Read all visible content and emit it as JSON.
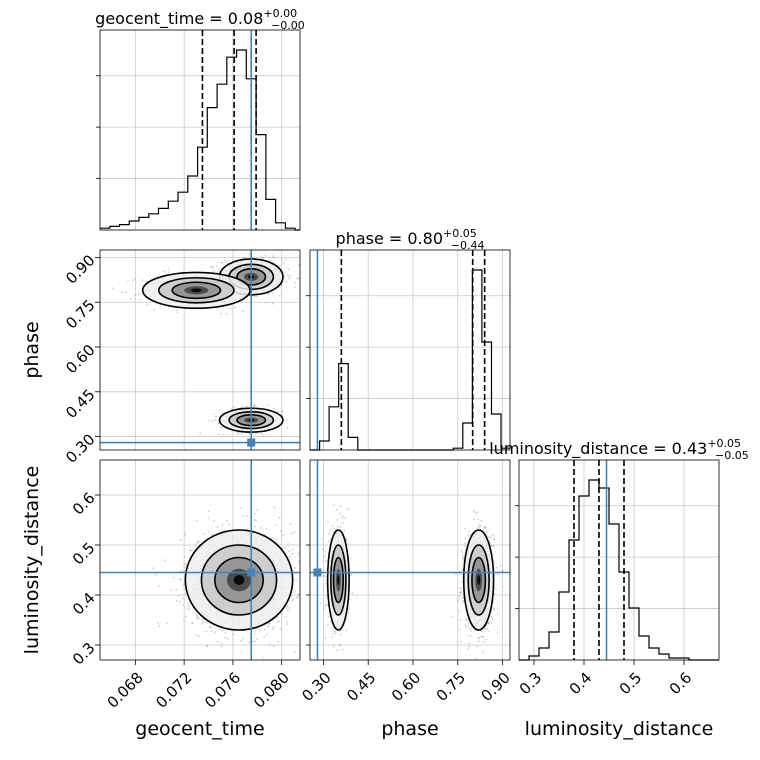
{
  "chart_data": {
    "type": "corner",
    "parameters": [
      "geocent_time",
      "phase",
      "luminosity_distance"
    ],
    "truths": {
      "geocent_time": 0.0775,
      "phase": 0.28,
      "luminosity_distance": 0.445
    },
    "colors": {
      "truth": "#4682b4",
      "hist": "#000000",
      "grid": "#c8c8c8"
    },
    "grid": true,
    "diagonals": [
      {
        "param": "geocent_time",
        "title_label": "geocent_time = 0.08",
        "title_sup": "+0.00",
        "title_sub": "−0.00",
        "xlim": [
          0.0651,
          0.0815
        ],
        "quantiles": [
          0.0735,
          0.0761,
          0.0779
        ],
        "truth": 0.0775,
        "bin_edges": [
          0.0651,
          0.0659,
          0.0667,
          0.0675,
          0.0683,
          0.0691,
          0.0699,
          0.0707,
          0.0715,
          0.0723,
          0.0731,
          0.0739,
          0.0747,
          0.0755,
          0.0763,
          0.0771,
          0.0779,
          0.0787,
          0.0795,
          0.0803,
          0.0811,
          0.0819
        ],
        "counts": [
          1,
          2,
          3,
          5,
          7,
          9,
          12,
          16,
          21,
          30,
          46,
          68,
          81,
          96,
          100,
          84,
          53,
          17,
          4,
          1,
          0
        ]
      },
      {
        "param": "phase",
        "title_label": "phase = 0.80",
        "title_sup": "+0.05",
        "title_sub": "−0.44",
        "xlim": [
          0.255,
          0.925
        ],
        "quantiles": [
          0.36,
          0.8,
          0.84
        ],
        "truth": 0.28,
        "bin_edges": [
          0.255,
          0.287,
          0.319,
          0.351,
          0.383,
          0.415,
          0.447,
          0.479,
          0.511,
          0.543,
          0.575,
          0.607,
          0.639,
          0.671,
          0.703,
          0.735,
          0.767,
          0.799,
          0.831,
          0.863,
          0.895,
          0.927
        ],
        "counts": [
          0,
          5,
          24,
          48,
          7,
          0,
          0,
          0,
          0,
          0,
          0,
          0,
          0,
          0,
          0,
          1,
          15,
          100,
          60,
          20,
          1
        ]
      },
      {
        "param": "luminosity_distance",
        "title_label": "luminosity_distance = 0.43",
        "title_sup": "+0.05",
        "title_sub": "−0.05",
        "xlim": [
          0.27,
          0.67
        ],
        "quantiles": [
          0.38,
          0.43,
          0.48
        ],
        "truth": 0.445,
        "bin_edges": [
          0.27,
          0.29,
          0.31,
          0.33,
          0.35,
          0.37,
          0.39,
          0.41,
          0.43,
          0.45,
          0.47,
          0.49,
          0.51,
          0.53,
          0.55,
          0.57,
          0.59,
          0.61,
          0.63,
          0.65,
          0.67
        ],
        "counts": [
          0,
          2,
          6,
          14,
          34,
          60,
          82,
          90,
          86,
          68,
          44,
          26,
          12,
          6,
          3,
          1,
          1,
          0,
          0,
          0
        ]
      }
    ],
    "pairs": [
      {
        "x": "geocent_time",
        "y": "phase",
        "ylim": [
          0.255,
          0.925
        ]
      },
      {
        "x": "geocent_time",
        "y": "luminosity_distance",
        "ylim": [
          0.27,
          0.67
        ]
      },
      {
        "x": "phase",
        "y": "luminosity_distance",
        "ylim": [
          0.27,
          0.67
        ]
      }
    ],
    "clusters": {
      "geocent_time_phase": [
        {
          "mx": 0.0775,
          "my": 0.835,
          "sx": 0.0013,
          "sy": 0.03,
          "w": 0.55
        },
        {
          "mx": 0.073,
          "my": 0.79,
          "sx": 0.0022,
          "sy": 0.03,
          "w": 0.2
        },
        {
          "mx": 0.0775,
          "my": 0.355,
          "sx": 0.0013,
          "sy": 0.02,
          "w": 0.25
        }
      ],
      "geocent_time_luminosity_distance": [
        {
          "mx": 0.0765,
          "my": 0.43,
          "sx": 0.0022,
          "sy": 0.05,
          "w": 1.0
        }
      ],
      "phase_luminosity_distance": [
        {
          "mx": 0.35,
          "my": 0.43,
          "sx": 0.018,
          "sy": 0.05,
          "w": 0.33
        },
        {
          "mx": 0.82,
          "my": 0.43,
          "sx": 0.025,
          "sy": 0.05,
          "w": 0.67
        }
      ]
    },
    "ticks": {
      "geocent_time": [
        "0.068",
        "0.072",
        "0.076",
        "0.080"
      ],
      "phase": [
        "0.30",
        "0.45",
        "0.60",
        "0.75",
        "0.90"
      ],
      "luminosity_distance": [
        "0.3",
        "0.4",
        "0.5",
        "0.6"
      ]
    },
    "xlabels": [
      "geocent_time",
      "phase",
      "luminosity_distance"
    ],
    "ylabels": {
      "phase": "phase",
      "luminosity_distance": "luminosity_distance"
    }
  }
}
